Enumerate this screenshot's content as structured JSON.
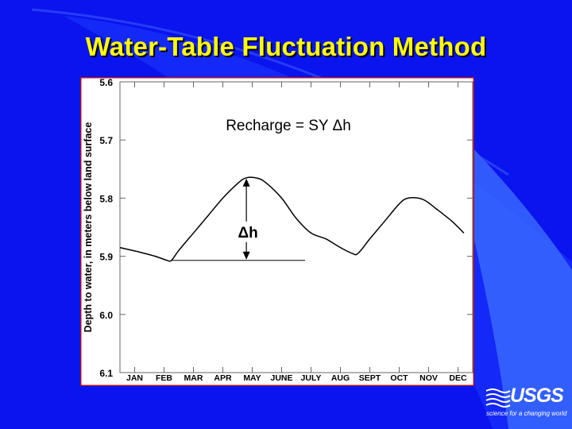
{
  "slide": {
    "title": "Water-Table Fluctuation Method"
  },
  "logo": {
    "name": "USGS",
    "tagline": "science for a changing world"
  },
  "colors": {
    "background": "#0a14ee",
    "title": "#ffff00",
    "chart_frame": "#b01020",
    "line": "#000000"
  },
  "chart_data": {
    "type": "line",
    "title": "",
    "xlabel": "",
    "ylabel": "Depth to water, in meters below land surface",
    "y_inverted": true,
    "ylim": [
      5.6,
      6.1
    ],
    "yticks": [
      "5.6",
      "5.7",
      "5.8",
      "5.9",
      "6.0",
      "6.1"
    ],
    "categories": [
      "JAN",
      "FEB",
      "MAR",
      "APR",
      "MAY",
      "JUNE",
      "JULY",
      "AUG",
      "SEPT",
      "OCT",
      "NOV",
      "DEC"
    ],
    "series": [
      {
        "name": "",
        "x": [
          0,
          0.6,
          1.2,
          1.6,
          1.75,
          2.0,
          2.5,
          3.0,
          3.5,
          4.0,
          4.3,
          4.7,
          5.0,
          5.5,
          6.0,
          6.5,
          7.0,
          7.5,
          7.9,
          8.1,
          8.5,
          9.0,
          9.5,
          9.8,
          10.3,
          10.8,
          11.3,
          11.7
        ],
        "y": [
          5.885,
          5.892,
          5.9,
          5.907,
          5.907,
          5.89,
          5.86,
          5.83,
          5.8,
          5.775,
          5.765,
          5.766,
          5.775,
          5.8,
          5.835,
          5.86,
          5.87,
          5.885,
          5.895,
          5.895,
          5.87,
          5.84,
          5.81,
          5.8,
          5.802,
          5.82,
          5.84,
          5.86
        ]
      }
    ],
    "annotations": {
      "formula": "Recharge = SY Δh",
      "delta_label": "Δh",
      "delta_x": 4.3,
      "delta_top": 5.765,
      "delta_bottom": 5.907,
      "baseline_x_end": 6.3
    }
  }
}
